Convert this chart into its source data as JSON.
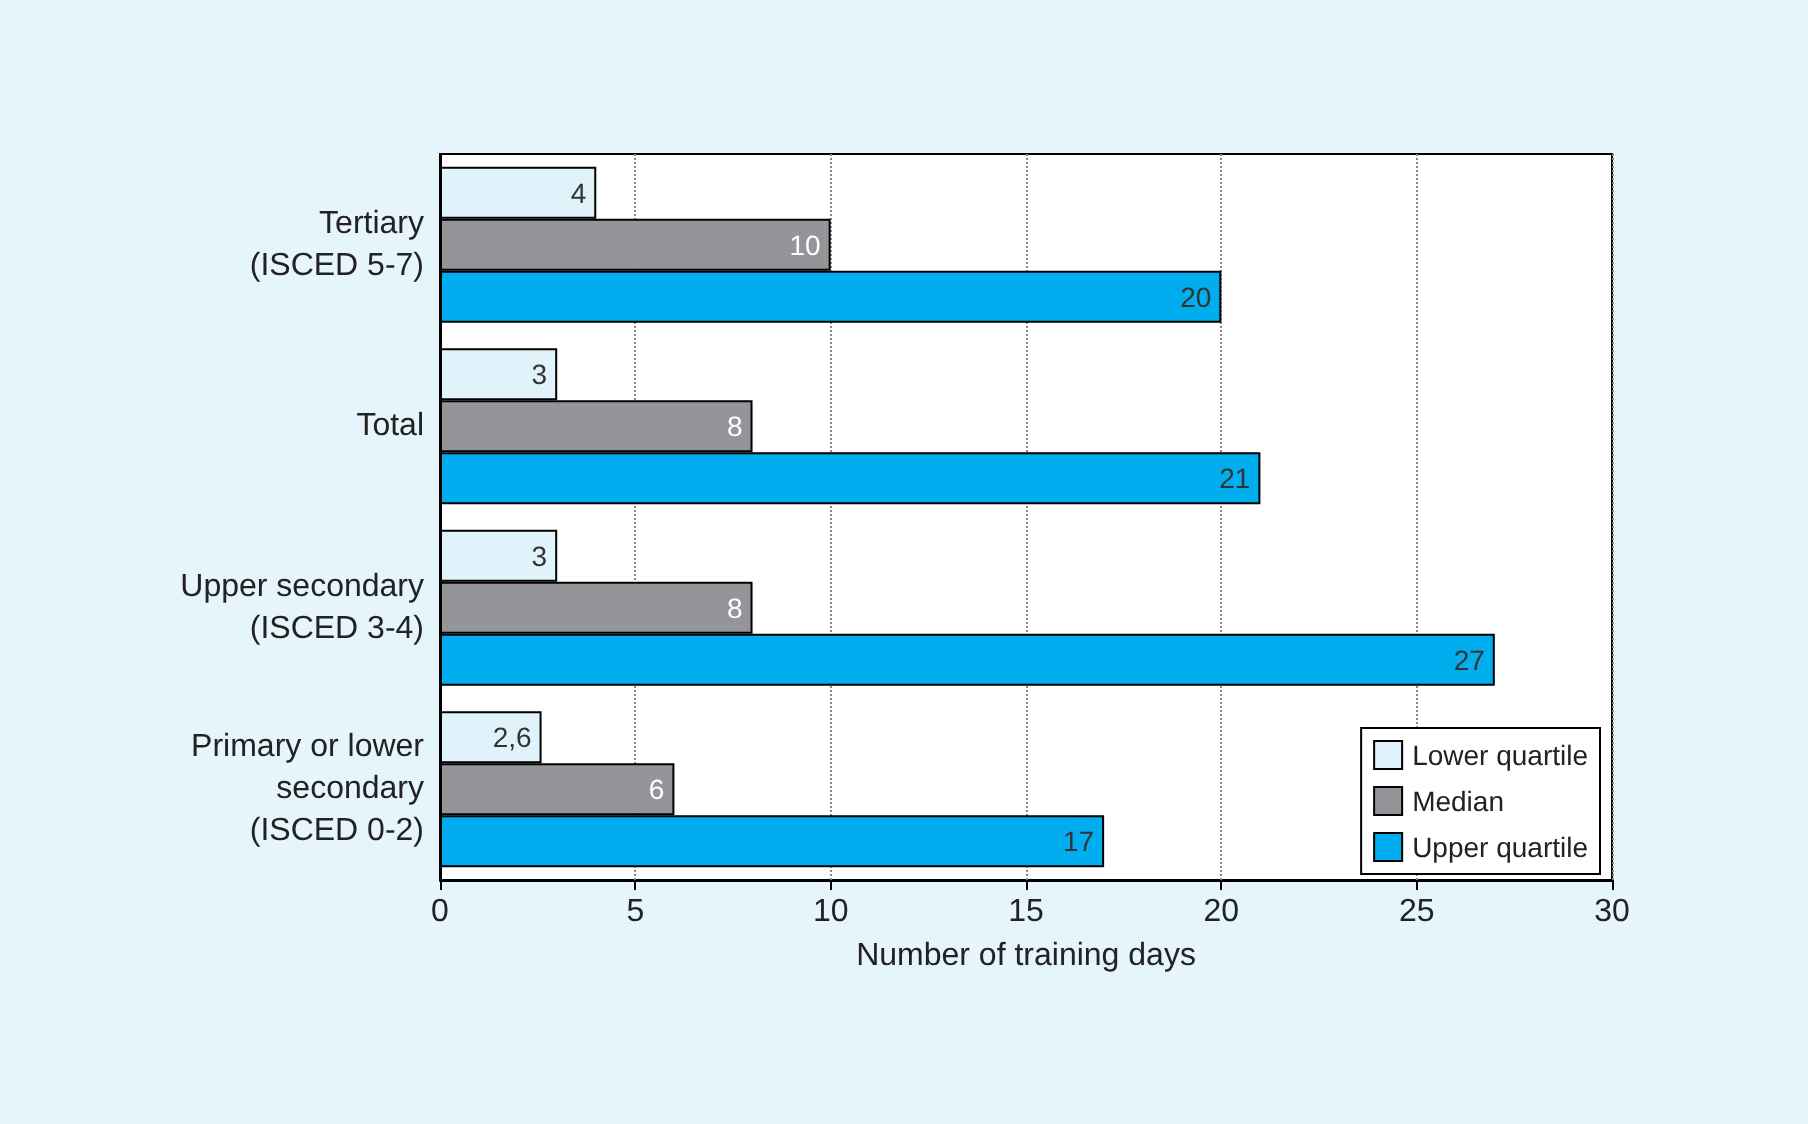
{
  "chart_data": {
    "type": "bar",
    "orientation": "horizontal",
    "xlabel": "Number of training days",
    "categories": [
      "Tertiary\n(ISCED 5-7)",
      "Total",
      "Upper secondary\n(ISCED 3-4)",
      "Primary or lower\nsecondary\n(ISCED 0-2)"
    ],
    "series": [
      {
        "name": "Lower quartile",
        "color": "#e0f3fb",
        "values": [
          4,
          3,
          3,
          2.6
        ],
        "value_labels": [
          "4",
          "3",
          "3",
          "2,6"
        ]
      },
      {
        "name": "Median",
        "color": "#939598",
        "values": [
          10,
          8,
          8,
          6
        ],
        "value_labels": [
          "10",
          "8",
          "8",
          "6"
        ]
      },
      {
        "name": "Upper quartile",
        "color": "#00aeef",
        "values": [
          20,
          21,
          27,
          17
        ],
        "value_labels": [
          "20",
          "21",
          "27",
          "17"
        ]
      }
    ],
    "xlim": [
      0,
      30
    ],
    "xticks": [
      0,
      5,
      10,
      15,
      20,
      25,
      30
    ],
    "grid": "x",
    "legend": "bottom right"
  }
}
